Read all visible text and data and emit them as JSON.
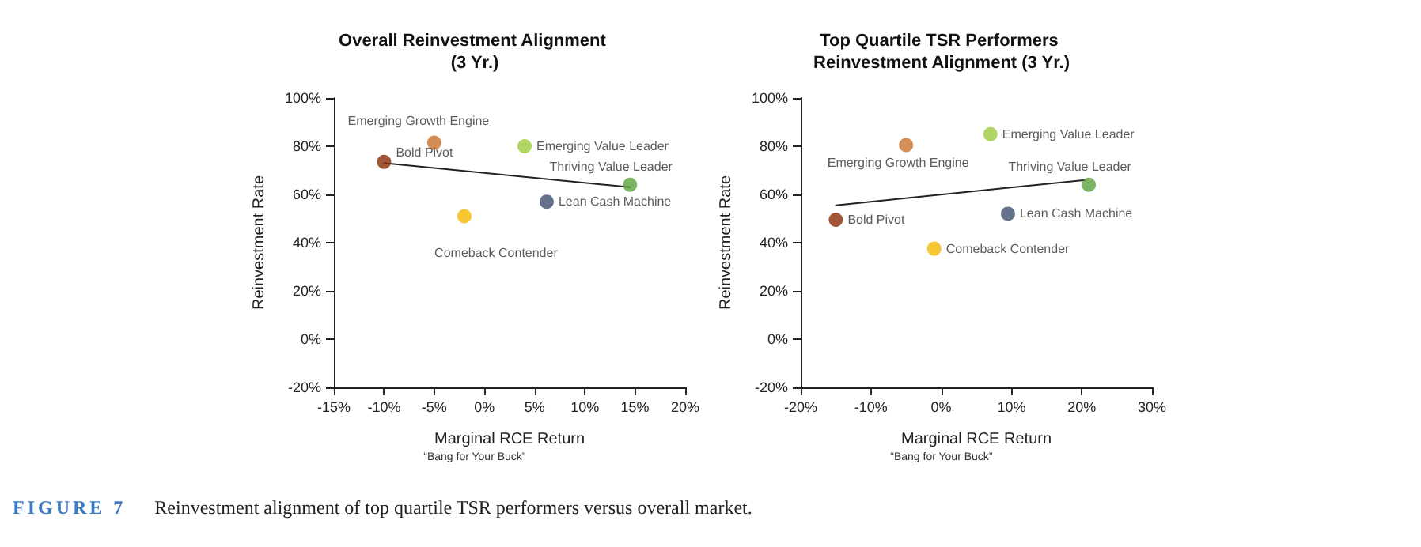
{
  "chart_data": [
    {
      "type": "scatter",
      "title": "Overall Reinvestment Alignment (3 Yr.)",
      "xlabel": "Marginal RCE Return",
      "ylabel": "Reinvestment Rate",
      "xlim": [
        -15,
        20
      ],
      "xticks": [
        {
          "value": -15,
          "label": "-15%"
        },
        {
          "value": -10,
          "label": "-10%"
        },
        {
          "value": -5,
          "label": "-5%"
        },
        {
          "value": 0,
          "label": "0%"
        },
        {
          "value": 5,
          "label": "5%"
        },
        {
          "value": 10,
          "label": "10%"
        },
        {
          "value": 15,
          "label": "15%"
        },
        {
          "value": 20,
          "label": "20%"
        }
      ],
      "ylim": [
        -20,
        100
      ],
      "yticks": [
        {
          "value": -20,
          "label": "-20%"
        },
        {
          "value": 0,
          "label": "0%"
        },
        {
          "value": 20,
          "label": "20%"
        },
        {
          "value": 40,
          "label": "40%"
        },
        {
          "value": 60,
          "label": "60%"
        },
        {
          "value": 80,
          "label": "80%"
        },
        {
          "value": 100,
          "label": "100%"
        }
      ],
      "grid": false,
      "legend": false,
      "marker": "circle",
      "series": [
        {
          "name": "Bold Pivot",
          "color": "#8b2a06",
          "x": [
            -10
          ],
          "values": [
            73.5
          ]
        },
        {
          "name": "Emerging Growth Engine",
          "color": "#c8702a",
          "x": [
            -5
          ],
          "values": [
            81.5
          ]
        },
        {
          "name": "Emerging Value Leader",
          "color": "#9ccb3c",
          "x": [
            4
          ],
          "values": [
            80
          ]
        },
        {
          "name": "Thriving Value Leader",
          "color": "#5aa33c",
          "x": [
            14.5
          ],
          "values": [
            64
          ]
        },
        {
          "name": "Lean Cash Machine",
          "color": "#3d4f6e",
          "x": [
            6.2
          ],
          "values": [
            57
          ]
        },
        {
          "name": "Comeback Contender",
          "color": "#f5b800",
          "x": [
            -2
          ],
          "values": [
            51
          ]
        },
        {
          "type": "line",
          "color": "#222222",
          "marker": "none",
          "x": [
            -10,
            14.5
          ],
          "values": [
            73,
            63
          ]
        }
      ],
      "annotations": [
        "“Bang for Your Buck”",
        "FIGURE 7",
        "Reinvestment alignment of top quartile TSR performers versus overall market."
      ]
    },
    {
      "type": "scatter",
      "title": "Top Quartile TSR Performers Reinvestment Alignment (3 Yr.)",
      "xlabel": "Marginal RCE Return",
      "ylabel": "Reinvestment Rate",
      "xlim": [
        -20,
        30
      ],
      "xticks": [
        {
          "value": -20,
          "label": "-20%"
        },
        {
          "value": -10,
          "label": "-10%"
        },
        {
          "value": 0,
          "label": "0%"
        },
        {
          "value": 10,
          "label": "10%"
        },
        {
          "value": 20,
          "label": "20%"
        },
        {
          "value": 30,
          "label": "30%"
        }
      ],
      "ylim": [
        -20,
        100
      ],
      "yticks": [
        {
          "value": -20,
          "label": "-20%"
        },
        {
          "value": 0,
          "label": "0%"
        },
        {
          "value": 20,
          "label": "20%"
        },
        {
          "value": 40,
          "label": "40%"
        },
        {
          "value": 60,
          "label": "60%"
        },
        {
          "value": 80,
          "label": "80%"
        },
        {
          "value": 100,
          "label": "100%"
        }
      ],
      "grid": false,
      "legend": false,
      "marker": "circle",
      "series": [
        {
          "name": "Bold Pivot",
          "color": "#8b2a06",
          "x": [
            -15
          ],
          "values": [
            49.5
          ]
        },
        {
          "name": "Emerging Growth Engine",
          "color": "#c8702a",
          "x": [
            -5
          ],
          "values": [
            80.5
          ]
        },
        {
          "name": "Emerging Value Leader",
          "color": "#9ccb3c",
          "x": [
            7
          ],
          "values": [
            85
          ]
        },
        {
          "name": "Thriving Value Leader",
          "color": "#5aa33c",
          "x": [
            21
          ],
          "values": [
            64
          ]
        },
        {
          "name": "Lean Cash Machine",
          "color": "#3d4f6e",
          "x": [
            9.5
          ],
          "values": [
            52
          ]
        },
        {
          "name": "Comeback Contender",
          "color": "#f5b800",
          "x": [
            -1
          ],
          "values": [
            37.5
          ]
        },
        {
          "type": "line",
          "color": "#222222",
          "marker": "none",
          "x": [
            -15,
            20.5
          ],
          "values": [
            55.5,
            66
          ]
        }
      ],
      "annotations": [
        "“Bang for Your Buck”"
      ]
    }
  ]
}
